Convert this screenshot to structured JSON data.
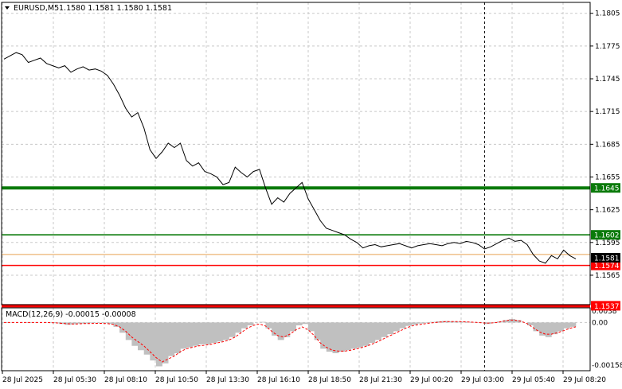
{
  "header": {
    "symbol": "EURUSD,M5",
    "ohlc": "1.1580 1.1581 1.1580 1.1581"
  },
  "chart_data": {
    "type": "line",
    "series": [
      {
        "kind": "close",
        "values": [
          1.1763,
          1.1766,
          1.1769,
          1.1767,
          1.176,
          1.1762,
          1.1764,
          1.1759,
          1.1757,
          1.1755,
          1.1757,
          1.1751,
          1.1754,
          1.1756,
          1.1753,
          1.1754,
          1.1752,
          1.1748,
          1.174,
          1.173,
          1.1718,
          1.171,
          1.1714,
          1.17,
          1.168,
          1.1672,
          1.1678,
          1.1686,
          1.1682,
          1.1686,
          1.167,
          1.1665,
          1.1668,
          1.166,
          1.1658,
          1.1655,
          1.1648,
          1.165,
          1.1664,
          1.1659,
          1.1655,
          1.166,
          1.1662,
          1.1645,
          1.163,
          1.1636,
          1.1632,
          1.164,
          1.1645,
          1.165,
          1.1635,
          1.1625,
          1.1615,
          1.1608,
          1.1606,
          1.1604,
          1.1602,
          1.1598,
          1.1595,
          1.159,
          1.1592,
          1.1593,
          1.1591,
          1.1592,
          1.1593,
          1.1594,
          1.1592,
          1.159,
          1.1592,
          1.1593,
          1.1594,
          1.1593,
          1.1592,
          1.1594,
          1.1595,
          1.1594,
          1.1596,
          1.1595,
          1.1593,
          1.1589,
          1.1591,
          1.1594,
          1.1597,
          1.1599,
          1.1596,
          1.1597,
          1.1593,
          1.1584,
          1.1578,
          1.1576,
          1.1583,
          1.158,
          1.1588,
          1.1583,
          1.158
        ]
      },
      {
        "kind": "macd-histogram",
        "values": [
          0.0,
          0.0,
          0.0,
          0.0,
          0.0,
          0.0,
          0.0,
          0.0,
          -2e-05,
          -5e-05,
          -8e-05,
          -6e-05,
          -4e-05,
          -3e-05,
          -2e-05,
          -1e-05,
          -2e-05,
          -5e-05,
          -0.00015,
          -0.00035,
          -0.0006,
          -0.0008,
          -0.00095,
          -0.0011,
          -0.0013,
          -0.0015,
          -0.0014,
          -0.00115,
          -0.00105,
          -0.0009,
          -0.00085,
          -0.0008,
          -0.00075,
          -0.00075,
          -0.0007,
          -0.00065,
          -0.0006,
          -0.0005,
          -0.00035,
          -0.0002,
          -0.0001,
          0.0,
          2e-05,
          -0.0002,
          -0.00045,
          -0.0006,
          -0.0005,
          -0.0003,
          -0.0001,
          -5e-05,
          -0.0003,
          -0.0006,
          -0.0009,
          -0.001,
          -0.00105,
          -0.001,
          -0.00095,
          -0.0009,
          -0.00085,
          -0.0008,
          -0.0007,
          -0.0006,
          -0.0005,
          -0.0004,
          -0.0003,
          -0.0002,
          -0.00012,
          -8e-05,
          -4e-05,
          -2e-05,
          2e-05,
          4e-05,
          5e-05,
          4e-05,
          3e-05,
          3e-05,
          2e-05,
          1e-05,
          -1e-05,
          -5e-05,
          -2e-05,
          3e-05,
          8e-05,
          0.00012,
          8e-05,
          0.0,
          -0.0001,
          -0.0003,
          -0.00045,
          -0.0005,
          -0.0004,
          -0.0003,
          -0.0002,
          -0.00015,
          -8e-05
        ]
      },
      {
        "kind": "macd-signal",
        "values": [
          0.0,
          0.0,
          0.0,
          0.0,
          0.0,
          0.0,
          0.0,
          0.0,
          -1e-05,
          -2e-05,
          -4e-05,
          -5e-05,
          -5e-05,
          -4e-05,
          -4e-05,
          -3e-05,
          -3e-05,
          -4e-05,
          -7e-05,
          -0.00015,
          -0.0003,
          -0.0005,
          -0.00065,
          -0.0008,
          -0.001,
          -0.0012,
          -0.00135,
          -0.00125,
          -0.00115,
          -0.001,
          -0.0009,
          -0.00085,
          -0.0008,
          -0.00078,
          -0.00075,
          -0.0007,
          -0.00066,
          -0.0006,
          -0.0005,
          -0.00035,
          -0.0002,
          -0.0001,
          -5e-05,
          -0.00012,
          -0.0003,
          -0.00045,
          -0.0005,
          -0.0004,
          -0.00025,
          -0.00015,
          -0.00025,
          -0.00045,
          -0.0007,
          -0.00085,
          -0.00095,
          -0.00098,
          -0.00098,
          -0.00095,
          -0.0009,
          -0.00085,
          -0.00078,
          -0.0007,
          -0.0006,
          -0.0005,
          -0.0004,
          -0.0003,
          -0.0002,
          -0.00012,
          -8e-05,
          -5e-05,
          -2e-05,
          0.0,
          2e-05,
          3e-05,
          3e-05,
          3e-05,
          2e-05,
          1e-05,
          0.0,
          -2e-05,
          -2e-05,
          0.0,
          4e-05,
          8e-05,
          8e-05,
          4e-05,
          -4e-05,
          -0.00018,
          -0.00032,
          -0.0004,
          -0.0004,
          -0.00035,
          -0.00028,
          -0.0002,
          -0.00015
        ]
      }
    ],
    "x_ticks": [
      "28 Jul 2025",
      "28 Jul 05:30",
      "28 Jul 08:10",
      "28 Jul 10:50",
      "28 Jul 13:30",
      "28 Jul 16:10",
      "28 Jul 18:50",
      "28 Jul 21:30",
      "29 Jul 00:20",
      "29 Jul 03:00",
      "29 Jul 05:40",
      "29 Jul 08:20"
    ],
    "y_ticks": [
      1.1805,
      1.1775,
      1.1745,
      1.1715,
      1.1685,
      1.1655,
      1.1625,
      1.1595,
      1.1565
    ],
    "ylim": [
      1.1538,
      1.1815
    ],
    "levels": [
      {
        "value": 1.1645,
        "label": "1.1645",
        "color": "#0a7a0a",
        "weight": "thick"
      },
      {
        "value": 1.1602,
        "label": "1.1602",
        "color": "#0a7a0a",
        "weight": "thin"
      },
      {
        "value": 1.1574,
        "label": "1.1574",
        "color": "#ff0000",
        "weight": "thin"
      },
      {
        "value": 1.1537,
        "label": "1.1537",
        "color": "#ff0000",
        "weight": "thick"
      }
    ],
    "price_line": {
      "value": 1.1584,
      "color": "#e8a050"
    },
    "current_price": {
      "value": 1.1581,
      "label": "1.1581"
    },
    "macd": {
      "title": "MACD(12,26,9) -0.00015 -0.00008",
      "y_ticks": [
        {
          "value": 0.0038,
          "label": "0.0038"
        },
        {
          "value": 0.0,
          "label": "0.00"
        },
        {
          "value": -0.00158,
          "label": "-0.00158"
        }
      ],
      "ylim": [
        -0.00165,
        0.0005
      ]
    },
    "separator_index": 79,
    "grid": true,
    "colors": {
      "line": "#000000",
      "histogram": "#c0c0c0",
      "signal": "#ff0000",
      "grid": "#c8c8c8"
    }
  }
}
